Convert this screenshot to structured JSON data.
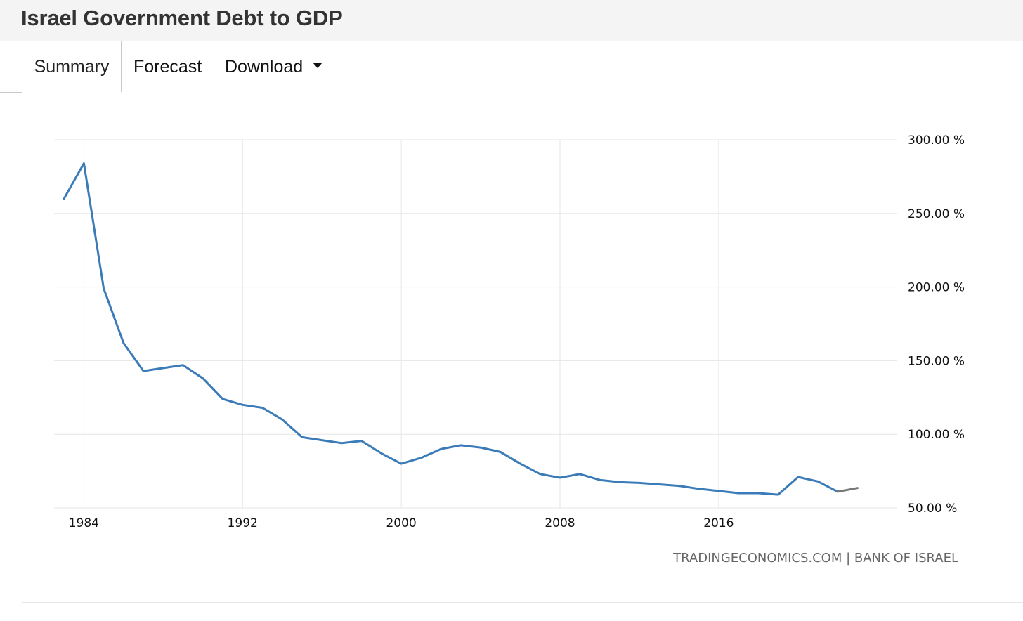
{
  "page": {
    "title": "Israel Government Debt to GDP"
  },
  "tabs": [
    {
      "label": "Summary",
      "active": true
    },
    {
      "label": "Forecast"
    },
    {
      "label": "Download"
    }
  ],
  "source": "TRADINGECONOMICS.COM | BANK OF ISRAEL",
  "colors": {
    "actual": "#3a7bb8",
    "forecast": "#777777",
    "grid": "#e6e6e6"
  },
  "chart_data": {
    "type": "line",
    "title": "",
    "xlabel": "",
    "ylabel": "",
    "xlim": [
      1982.5,
      2025
    ],
    "ylim": [
      50,
      300
    ],
    "x_ticks": [
      1984,
      1992,
      2000,
      2008,
      2016
    ],
    "y_ticks": [
      50,
      100,
      150,
      200,
      250,
      300
    ],
    "y_tick_labels": [
      "50.00 %",
      "100.00 %",
      "150.00 %",
      "200.00 %",
      "250.00 %",
      "300.00 %"
    ],
    "grid": true,
    "legend": "none",
    "series": [
      {
        "x": [
          1983,
          1984,
          1985,
          1986,
          1987,
          1988,
          1989,
          1990,
          1991,
          1992,
          1993,
          1994,
          1995,
          1996,
          1997,
          1998,
          1999,
          2000,
          2001,
          2002,
          2003,
          2004,
          2005,
          2006,
          2007,
          2008,
          2009,
          2010,
          2011,
          2012,
          2013,
          2014,
          2015,
          2016,
          2017,
          2018,
          2019,
          2020,
          2021,
          2022
        ],
        "values": [
          260,
          284,
          199,
          162,
          143,
          145,
          147,
          138,
          124,
          120,
          118,
          110,
          98,
          96,
          94,
          95.5,
          87,
          80,
          84,
          90,
          92.5,
          91,
          88,
          80,
          73,
          70.5,
          73,
          69,
          67.5,
          67,
          66,
          65,
          63,
          61.5,
          60,
          60,
          59,
          71,
          68,
          61
        ],
        "color": "#3a7bb8"
      },
      {
        "x": [
          2022,
          2023
        ],
        "values": [
          61,
          63.5
        ],
        "color": "#777777"
      }
    ]
  }
}
